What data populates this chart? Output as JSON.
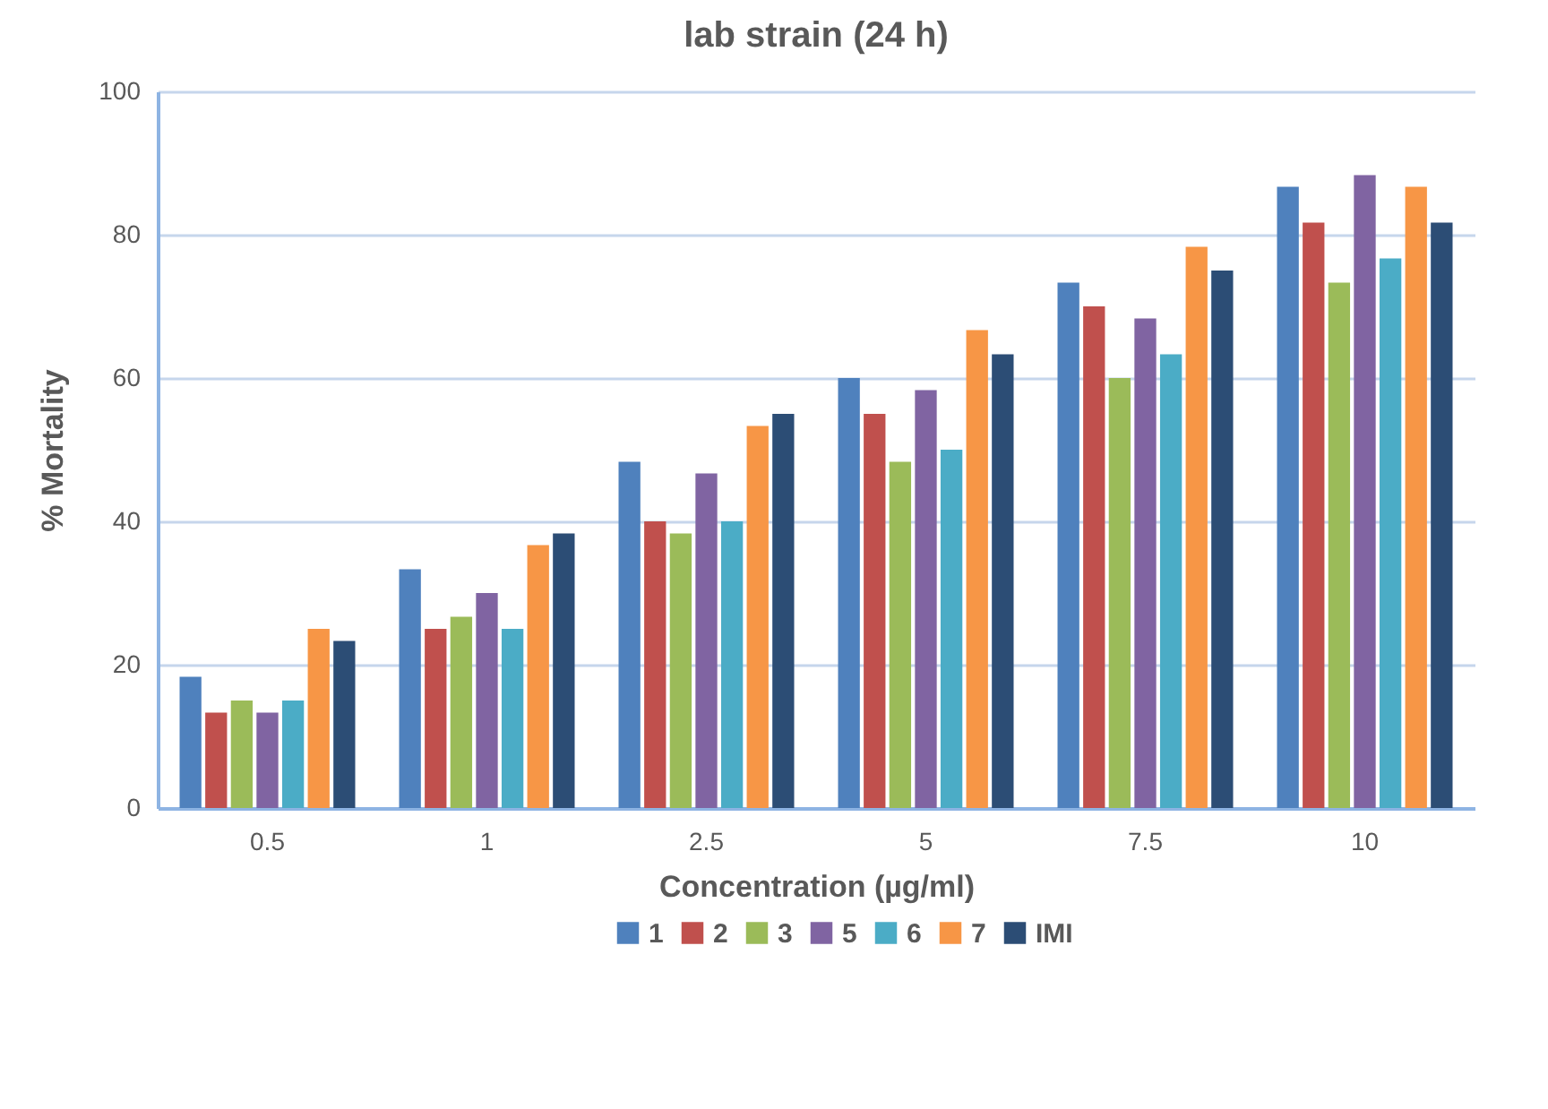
{
  "chart_data": {
    "type": "bar",
    "title": "lab strain (24 h)",
    "xlabel": "Concentration (µg/ml)",
    "ylabel": "% Mortality",
    "categories": [
      "0.5",
      "1",
      "2.5",
      "5",
      "7.5",
      "10"
    ],
    "series": [
      {
        "name": "1",
        "color": "#4f81bd",
        "values": [
          18.3,
          33.3,
          48.3,
          60,
          73.3,
          86.7
        ]
      },
      {
        "name": "2",
        "color": "#c0504d",
        "values": [
          13.3,
          25,
          40,
          55,
          70,
          81.7
        ]
      },
      {
        "name": "3",
        "color": "#9bbb59",
        "values": [
          15,
          26.7,
          38.3,
          48.3,
          60,
          73.3
        ]
      },
      {
        "name": "5",
        "color": "#8064a2",
        "values": [
          13.3,
          30,
          46.7,
          58.3,
          68.3,
          88.3
        ]
      },
      {
        "name": "6",
        "color": "#4bacc6",
        "values": [
          15,
          25,
          40,
          50,
          63.3,
          76.7
        ]
      },
      {
        "name": "7",
        "color": "#f79646",
        "values": [
          25,
          36.7,
          53.3,
          66.7,
          78.3,
          86.7
        ]
      },
      {
        "name": "IMI",
        "color": "#2c4d75",
        "values": [
          23.3,
          38.3,
          55,
          63.3,
          75,
          81.7
        ]
      }
    ],
    "ylim": [
      0,
      100
    ],
    "yticks": [
      0,
      20,
      40,
      60,
      80,
      100
    ],
    "grid": "y",
    "legend": "bottom"
  }
}
